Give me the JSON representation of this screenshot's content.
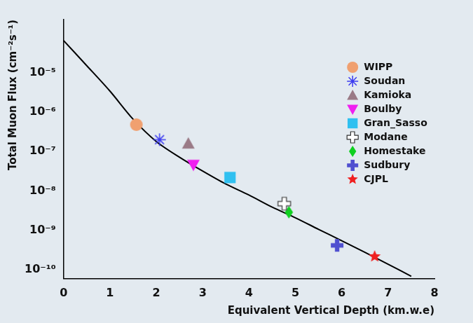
{
  "chart_data": {
    "type": "scatter",
    "x_label": "Equivalent Vertical Depth (km.w.e)",
    "y_label": "Total Muon Flux (cm⁻²s⁻¹)",
    "log": "y",
    "grid": false,
    "legend": "top-right",
    "xlim": [
      0,
      8
    ],
    "xticks": [
      0,
      1,
      2,
      3,
      4,
      5,
      6,
      7,
      8
    ],
    "ylim": [
      6e-11,
      0.00022
    ],
    "yticks": [
      {
        "value": 1e-10,
        "label": "10⁻¹⁰"
      },
      {
        "value": 1e-09,
        "label": "10⁻⁹"
      },
      {
        "value": 1e-08,
        "label": "10⁻⁸"
      },
      {
        "value": 1e-07,
        "label": "10⁻⁷"
      },
      {
        "value": 1e-06,
        "label": "10⁻⁶"
      },
      {
        "value": 1e-05,
        "label": "10⁻⁵"
      }
    ],
    "curve": {
      "type": "line",
      "color": "#000000",
      "x": [
        0,
        0.5,
        1,
        1.5,
        2,
        2.5,
        3,
        3.5,
        4,
        4.5,
        5,
        5.5,
        6,
        6.5,
        7,
        7.5
      ],
      "values": [
        6.5e-05,
        1.5e-05,
        3.4e-06,
        6.6e-07,
        1.8e-07,
        7.2e-08,
        3.2e-08,
        1.5e-08,
        7.9e-09,
        3.9e-09,
        2.1e-09,
        1.07e-09,
        5.5e-10,
        2.8e-10,
        1.4e-10,
        6.9e-11
      ]
    },
    "series": [
      {
        "name": "WIPP",
        "color": "#f0a070",
        "marker": "circle",
        "x": [
          1.57
        ],
        "values": [
          4.8e-07
        ]
      },
      {
        "name": "Soudan",
        "color": "#3c3cf0",
        "marker": "asterisk",
        "x": [
          2.07
        ],
        "values": [
          2e-07
        ]
      },
      {
        "name": "Kamioka",
        "color": "#9a7a86",
        "marker": "triangle",
        "x": [
          2.69
        ],
        "values": [
          1.6e-07
        ]
      },
      {
        "name": "Boulby",
        "color": "#f020f0",
        "marker": "triangle_down",
        "x": [
          2.8
        ],
        "values": [
          4.6e-08
        ]
      },
      {
        "name": "Gran_Sasso",
        "color": "#30c0f0",
        "marker": "square",
        "x": [
          3.59
        ],
        "values": [
          2.2e-08
        ]
      },
      {
        "name": "Modane",
        "color": "#ffffff",
        "marker": "plus_open",
        "x": [
          4.76
        ],
        "values": [
          4.8e-09
        ]
      },
      {
        "name": "Homestake",
        "color": "#10d020",
        "marker": "diamond",
        "x": [
          4.86
        ],
        "values": [
          2.9e-09
        ]
      },
      {
        "name": "Sudbury",
        "color": "#5050d0",
        "marker": "plus",
        "x": [
          5.9
        ],
        "values": [
          4.2e-10
        ]
      },
      {
        "name": "CJPL",
        "color": "#f02020",
        "marker": "star",
        "x": [
          6.71
        ],
        "values": [
          2.2e-10
        ]
      }
    ]
  }
}
